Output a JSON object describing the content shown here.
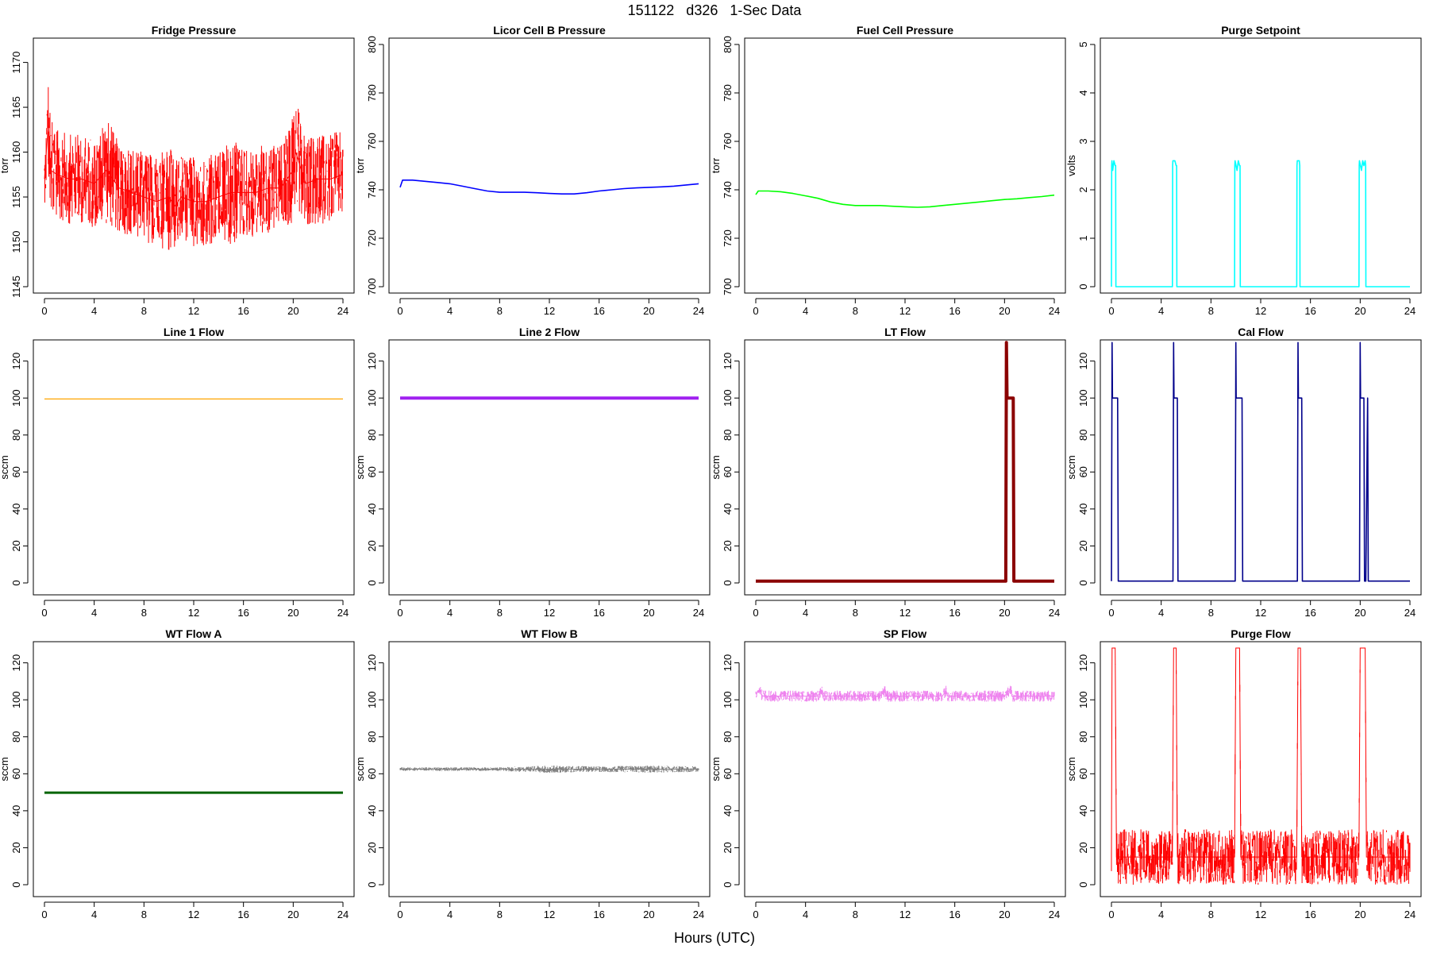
{
  "page": {
    "title": "151122   d326   1-Sec Data",
    "xlabel": "Hours (UTC)"
  },
  "chart_data": [
    {
      "type": "line",
      "title": "Fridge Pressure",
      "ylabel": "torr",
      "color": "#ff0000",
      "xlim": [
        0,
        24
      ],
      "ylim": [
        1145,
        1172
      ],
      "xticks": [
        0,
        4,
        8,
        12,
        16,
        20,
        24
      ],
      "yticks": [
        1145,
        1150,
        1155,
        1160,
        1165,
        1170
      ],
      "series": [
        {
          "x": [
            0,
            0.3,
            0.5,
            1,
            2,
            3,
            4,
            5,
            6,
            7,
            8,
            9,
            10,
            10.5,
            11,
            12,
            13,
            14,
            15,
            16,
            17,
            18,
            19,
            20,
            20.2,
            21,
            22,
            23,
            24
          ],
          "y": [
            1157,
            1163,
            1158,
            1157.5,
            1157,
            1157,
            1156.5,
            1158,
            1156,
            1155.5,
            1155,
            1154.5,
            1155,
            1154,
            1155,
            1154.5,
            1154.5,
            1155,
            1155.5,
            1155.5,
            1155.5,
            1156,
            1156,
            1158,
            1160,
            1156.5,
            1157,
            1157,
            1157.5
          ],
          "spread": [
            3,
            6,
            6,
            5,
            5,
            5,
            5,
            6,
            5,
            5,
            5,
            5,
            6,
            5,
            5,
            5,
            5,
            5,
            6,
            5,
            5,
            5,
            5,
            6,
            6,
            5,
            5,
            5,
            5
          ]
        }
      ]
    },
    {
      "type": "line",
      "title": "Licor Cell B Pressure",
      "ylabel": "torr",
      "color": "#0000ff",
      "xlim": [
        0,
        24
      ],
      "ylim": [
        700,
        800
      ],
      "xticks": [
        0,
        4,
        8,
        12,
        16,
        20,
        24
      ],
      "yticks": [
        700,
        720,
        740,
        760,
        780,
        800
      ],
      "series": [
        {
          "x": [
            0,
            0.2,
            1,
            2,
            3,
            4,
            5,
            6,
            7,
            8,
            9,
            10,
            11,
            12,
            13,
            14,
            15,
            16,
            17,
            18,
            19,
            20,
            21,
            22,
            23,
            24
          ],
          "y": [
            741,
            744,
            744,
            743.5,
            743,
            742.5,
            741.5,
            740.5,
            739.5,
            739,
            739,
            739,
            738.8,
            738.5,
            738.3,
            738.3,
            738.8,
            739.5,
            740,
            740.5,
            740.8,
            741,
            741.2,
            741.5,
            742,
            742.5
          ]
        }
      ]
    },
    {
      "type": "line",
      "title": "Fuel Cell Pressure",
      "ylabel": "torr",
      "color": "#00ff00",
      "xlim": [
        0,
        24
      ],
      "ylim": [
        700,
        800
      ],
      "xticks": [
        0,
        4,
        8,
        12,
        16,
        20,
        24
      ],
      "yticks": [
        700,
        720,
        740,
        760,
        780,
        800
      ],
      "series": [
        {
          "x": [
            0,
            0.2,
            1,
            2,
            3,
            4,
            5,
            6,
            7,
            8,
            9,
            10,
            11,
            12,
            13,
            14,
            15,
            16,
            17,
            18,
            19,
            20,
            21,
            22,
            23,
            24
          ],
          "y": [
            738,
            739.5,
            739.5,
            739.2,
            738.5,
            737.5,
            736.5,
            735,
            734,
            733.5,
            733.5,
            733.5,
            733.2,
            733,
            732.8,
            733,
            733.5,
            734,
            734.5,
            735,
            735.5,
            736,
            736.3,
            736.8,
            737.2,
            737.8
          ]
        }
      ]
    },
    {
      "type": "line",
      "title": "Purge Setpoint",
      "ylabel": "volts",
      "color": "#00ffff",
      "xlim": [
        0,
        24
      ],
      "ylim": [
        0,
        5
      ],
      "xticks": [
        0,
        4,
        8,
        12,
        16,
        20,
        24
      ],
      "yticks": [
        0,
        1,
        2,
        3,
        4,
        5
      ],
      "series": [
        {
          "x": [
            0,
            0.02,
            0.04,
            0.1,
            0.2,
            0.3,
            0.34,
            0.36,
            4.9,
            4.92,
            4.94,
            5.1,
            5.2,
            5.24,
            5.26,
            9.9,
            9.92,
            9.94,
            10.1,
            10.2,
            10.3,
            10.34,
            10.36,
            14.9,
            14.92,
            14.94,
            15.1,
            15.14,
            15.16,
            19.9,
            19.92,
            19.94,
            20.1,
            20.2,
            20.3,
            20.4,
            20.44,
            20.46,
            24
          ],
          "y": [
            0,
            2.5,
            2.6,
            2.4,
            2.6,
            2.5,
            2.5,
            0,
            0,
            2.5,
            2.6,
            2.6,
            2.5,
            2.5,
            0,
            0,
            2.5,
            2.6,
            2.4,
            2.6,
            2.5,
            2.5,
            0,
            0,
            2.5,
            2.6,
            2.6,
            2.5,
            0,
            0,
            2.5,
            2.6,
            2.4,
            2.6,
            2.5,
            2.6,
            2.5,
            0,
            0
          ]
        }
      ]
    },
    {
      "type": "line",
      "title": "Line 1 Flow",
      "ylabel": "sccm",
      "color": "#ffa500",
      "xlim": [
        0,
        24
      ],
      "ylim": [
        -3,
        128
      ],
      "xticks": [
        0,
        4,
        8,
        12,
        16,
        20,
        24
      ],
      "yticks": [
        0,
        20,
        40,
        60,
        80,
        100,
        120
      ],
      "series": [
        {
          "x": [
            0,
            24
          ],
          "y": [
            99.5,
            99.5
          ],
          "width": 1.2
        }
      ]
    },
    {
      "type": "line",
      "title": "Line 2 Flow",
      "ylabel": "sccm",
      "color": "#a020f0",
      "xlim": [
        0,
        24
      ],
      "ylim": [
        -3,
        128
      ],
      "xticks": [
        0,
        4,
        8,
        12,
        16,
        20,
        24
      ],
      "yticks": [
        0,
        20,
        40,
        60,
        80,
        100,
        120
      ],
      "series": [
        {
          "x": [
            0,
            24
          ],
          "y": [
            100,
            100
          ],
          "width": 4
        }
      ]
    },
    {
      "type": "line",
      "title": "LT Flow",
      "ylabel": "sccm",
      "color": "#8b0000",
      "xlim": [
        0,
        24
      ],
      "ylim": [
        -3,
        128
      ],
      "xticks": [
        0,
        4,
        8,
        12,
        16,
        20,
        24
      ],
      "yticks": [
        0,
        20,
        40,
        60,
        80,
        100,
        120
      ],
      "series": [
        {
          "x": [
            0,
            20.1,
            20.15,
            20.2,
            20.25,
            20.3,
            20.7,
            20.75,
            24
          ],
          "y": [
            1,
            1,
            130,
            100,
            100,
            100,
            100,
            1,
            1
          ],
          "width": 4
        }
      ]
    },
    {
      "type": "line",
      "title": "Cal Flow",
      "ylabel": "sccm",
      "color": "#00008b",
      "xlim": [
        0,
        24
      ],
      "ylim": [
        -3,
        128
      ],
      "xticks": [
        0,
        4,
        8,
        12,
        16,
        20,
        24
      ],
      "yticks": [
        0,
        20,
        40,
        60,
        80,
        100,
        120
      ],
      "series": [
        {
          "x": [
            0,
            0.05,
            0.08,
            0.5,
            0.55,
            4.95,
            5.0,
            5.03,
            5.3,
            5.35,
            9.95,
            10.0,
            10.03,
            10.5,
            10.55,
            14.95,
            15.0,
            15.03,
            15.3,
            15.35,
            19.95,
            20.0,
            20.03,
            20.3,
            20.35,
            20.45,
            20.6,
            20.65,
            24
          ],
          "y": [
            1,
            130,
            100,
            100,
            1,
            1,
            130,
            100,
            100,
            1,
            1,
            130,
            100,
            100,
            1,
            1,
            130,
            100,
            100,
            1,
            1,
            130,
            100,
            100,
            1,
            1,
            100,
            1,
            1
          ]
        }
      ]
    },
    {
      "type": "line",
      "title": "WT Flow A",
      "ylabel": "sccm",
      "color": "#006400",
      "xlim": [
        0,
        24
      ],
      "ylim": [
        -3,
        128
      ],
      "xticks": [
        0,
        4,
        8,
        12,
        16,
        20,
        24
      ],
      "yticks": [
        0,
        20,
        40,
        60,
        80,
        100,
        120
      ],
      "series": [
        {
          "x": [
            0,
            24
          ],
          "y": [
            49.8,
            49.8
          ],
          "width": 3
        }
      ]
    },
    {
      "type": "line",
      "title": "WT Flow B",
      "ylabel": "sccm",
      "color": "#808080",
      "xlim": [
        0,
        24
      ],
      "ylim": [
        -3,
        128
      ],
      "xticks": [
        0,
        4,
        8,
        12,
        16,
        20,
        24
      ],
      "yticks": [
        0,
        20,
        40,
        60,
        80,
        100,
        120
      ],
      "series": [
        {
          "x": [
            0,
            4,
            8,
            12,
            16,
            20,
            24
          ],
          "y": [
            62.5,
            62.5,
            62.5,
            62.5,
            62.5,
            62.5,
            62.5
          ],
          "spread": [
            1,
            1,
            1,
            2,
            1.5,
            2,
            1.5
          ]
        }
      ]
    },
    {
      "type": "line",
      "title": "SP Flow",
      "ylabel": "sccm",
      "color": "#ee82ee",
      "xlim": [
        0,
        24
      ],
      "ylim": [
        -3,
        128
      ],
      "xticks": [
        0,
        4,
        8,
        12,
        16,
        20,
        24
      ],
      "yticks": [
        0,
        20,
        40,
        60,
        80,
        100,
        120
      ],
      "series": [
        {
          "x": [
            0,
            0.2,
            0.4,
            0.5,
            5.0,
            5.3,
            5.4,
            10.0,
            10.4,
            10.5,
            15.0,
            15.3,
            15.4,
            20.0,
            20.5,
            20.6,
            24
          ],
          "y": [
            103,
            105,
            105,
            102,
            102,
            105,
            102,
            102,
            105,
            102,
            102,
            105,
            102,
            102,
            106,
            102,
            102
          ],
          "spread": [
            3,
            2,
            2,
            3,
            3,
            3,
            3,
            3,
            3,
            3,
            3,
            3,
            3,
            3,
            3,
            3,
            3
          ]
        }
      ]
    },
    {
      "type": "line",
      "title": "Purge Flow",
      "ylabel": "sccm",
      "color": "#ff0000",
      "xlim": [
        0,
        24
      ],
      "ylim": [
        -3,
        128
      ],
      "xticks": [
        0,
        4,
        8,
        12,
        16,
        20,
        24
      ],
      "yticks": [
        0,
        20,
        40,
        60,
        80,
        100,
        120
      ],
      "series": [
        {
          "x": [
            0,
            0.05,
            0.3,
            0.4,
            4.9,
            5.0,
            5.2,
            5.3,
            9.9,
            10.0,
            10.3,
            10.4,
            14.9,
            15.0,
            15.2,
            15.3,
            19.9,
            20.0,
            20.4,
            20.5,
            24
          ],
          "y": [
            15,
            128,
            128,
            15,
            15,
            128,
            128,
            15,
            15,
            128,
            128,
            15,
            15,
            128,
            128,
            15,
            15,
            128,
            128,
            15,
            15
          ],
          "spread": [
            15,
            0,
            0,
            15,
            15,
            0,
            0,
            15,
            15,
            0,
            0,
            15,
            15,
            0,
            0,
            15,
            15,
            0,
            0,
            15,
            15
          ]
        }
      ]
    }
  ]
}
